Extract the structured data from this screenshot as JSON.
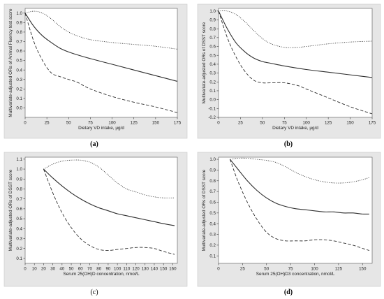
{
  "chart_data": [
    {
      "type": "line",
      "panel_label": "(a)",
      "label_bold": true,
      "xlabel": "Dietary VD intake, μg/d",
      "ylabel": "Multivariate-adjusted ORs of Animal Fluency test score",
      "xlim": [
        0,
        175
      ],
      "ylim": [
        -0.1,
        1.05
      ],
      "xticks": [
        0,
        25,
        50,
        75,
        100,
        125,
        150,
        175
      ],
      "yticks": [
        0.0,
        0.1,
        0.2,
        0.3,
        0.4,
        0.5,
        0.6,
        0.7,
        0.8,
        0.9,
        1.0
      ],
      "series": [
        {
          "style": "dotted",
          "x": [
            0,
            10,
            20,
            30,
            40,
            50,
            60,
            75,
            100,
            125,
            150,
            175
          ],
          "y": [
            1.0,
            1.02,
            1.0,
            0.94,
            0.86,
            0.8,
            0.76,
            0.72,
            0.69,
            0.67,
            0.65,
            0.62
          ]
        },
        {
          "style": "solid",
          "x": [
            0,
            10,
            20,
            30,
            40,
            50,
            60,
            75,
            100,
            125,
            150,
            175
          ],
          "y": [
            1.0,
            0.86,
            0.76,
            0.69,
            0.63,
            0.59,
            0.56,
            0.52,
            0.46,
            0.4,
            0.34,
            0.28
          ]
        },
        {
          "style": "dashed",
          "x": [
            0,
            10,
            20,
            30,
            40,
            50,
            60,
            75,
            100,
            125,
            150,
            175
          ],
          "y": [
            1.0,
            0.7,
            0.5,
            0.37,
            0.33,
            0.3,
            0.27,
            0.2,
            0.12,
            0.06,
            0.01,
            -0.05
          ]
        }
      ]
    },
    {
      "type": "line",
      "panel_label": "(b)",
      "label_bold": true,
      "xlabel": "Dietary VD intake, μg/d",
      "ylabel": "Multivariate-adjusted ORs of DSST score",
      "xlim": [
        0,
        175
      ],
      "ylim": [
        -0.2,
        1.03
      ],
      "xticks": [
        0,
        25,
        50,
        75,
        100,
        125,
        150,
        175
      ],
      "yticks": [
        -0.2,
        -0.1,
        0.0,
        0.1,
        0.2,
        0.3,
        0.4,
        0.5,
        0.6,
        0.7,
        0.8,
        0.9,
        1.0
      ],
      "series": [
        {
          "style": "dotted",
          "x": [
            0,
            10,
            20,
            30,
            40,
            50,
            60,
            75,
            90,
            100,
            125,
            150,
            175
          ],
          "y": [
            1.0,
            1.0,
            0.96,
            0.88,
            0.78,
            0.69,
            0.63,
            0.59,
            0.59,
            0.6,
            0.63,
            0.65,
            0.66
          ]
        },
        {
          "style": "solid",
          "x": [
            0,
            10,
            20,
            30,
            40,
            50,
            60,
            75,
            100,
            125,
            150,
            175
          ],
          "y": [
            1.0,
            0.8,
            0.64,
            0.54,
            0.47,
            0.43,
            0.41,
            0.38,
            0.34,
            0.31,
            0.28,
            0.25
          ]
        },
        {
          "style": "dashed",
          "x": [
            0,
            10,
            20,
            30,
            40,
            50,
            60,
            75,
            90,
            100,
            125,
            150,
            175
          ],
          "y": [
            1.0,
            0.7,
            0.48,
            0.32,
            0.22,
            0.19,
            0.19,
            0.19,
            0.16,
            0.12,
            0.02,
            -0.08,
            -0.16
          ]
        }
      ]
    },
    {
      "type": "line",
      "panel_label": "(c)",
      "label_bold": false,
      "xlabel": "Serum 25(OH)D concentration, nmol/L",
      "ylabel": "Multivariate-adjusted ORs of DSST score",
      "xlim": [
        0,
        165
      ],
      "ylim": [
        0.05,
        1.12
      ],
      "xticks": [
        0,
        10,
        20,
        30,
        40,
        50,
        60,
        70,
        80,
        90,
        100,
        110,
        120,
        130,
        140,
        150,
        160
      ],
      "yticks": [
        0.1,
        0.2,
        0.3,
        0.4,
        0.5,
        0.6,
        0.7,
        0.8,
        0.9,
        1.0,
        1.1
      ],
      "series": [
        {
          "style": "dotted",
          "x": [
            20,
            30,
            40,
            50,
            60,
            70,
            80,
            90,
            100,
            110,
            120,
            130,
            140,
            150,
            162
          ],
          "y": [
            1.0,
            1.05,
            1.08,
            1.09,
            1.09,
            1.07,
            1.02,
            0.94,
            0.86,
            0.8,
            0.77,
            0.74,
            0.72,
            0.71,
            0.71
          ]
        },
        {
          "style": "solid",
          "x": [
            20,
            30,
            40,
            50,
            60,
            70,
            80,
            90,
            100,
            110,
            120,
            130,
            140,
            150,
            162
          ],
          "y": [
            1.0,
            0.91,
            0.83,
            0.76,
            0.7,
            0.65,
            0.61,
            0.58,
            0.55,
            0.53,
            0.51,
            0.49,
            0.47,
            0.45,
            0.43
          ]
        },
        {
          "style": "dashed",
          "x": [
            20,
            30,
            40,
            50,
            60,
            70,
            80,
            90,
            100,
            110,
            120,
            130,
            140,
            150,
            162
          ],
          "y": [
            1.0,
            0.76,
            0.56,
            0.41,
            0.3,
            0.23,
            0.19,
            0.18,
            0.19,
            0.2,
            0.21,
            0.21,
            0.2,
            0.17,
            0.14
          ]
        }
      ]
    },
    {
      "type": "line",
      "panel_label": "(d)",
      "label_bold": true,
      "xlabel": "Serum 25(OH)D3 concentration, nmol/L",
      "ylabel": "Multivariate-adjusted ORs of DSST score",
      "xlim": [
        0,
        160
      ],
      "ylim": [
        0.03,
        1.02
      ],
      "xticks": [
        0,
        25,
        50,
        75,
        100,
        125,
        150
      ],
      "yticks": [
        0.1,
        0.2,
        0.3,
        0.4,
        0.5,
        0.6,
        0.7,
        0.8,
        0.9,
        1.0
      ],
      "series": [
        {
          "style": "dotted",
          "x": [
            12,
            20,
            30,
            40,
            50,
            60,
            70,
            80,
            90,
            100,
            110,
            120,
            130,
            140,
            150,
            157
          ],
          "y": [
            1.0,
            1.01,
            1.01,
            1.0,
            0.99,
            0.97,
            0.93,
            0.88,
            0.84,
            0.81,
            0.79,
            0.78,
            0.78,
            0.79,
            0.81,
            0.83
          ]
        },
        {
          "style": "solid",
          "x": [
            12,
            20,
            30,
            40,
            50,
            60,
            70,
            80,
            90,
            100,
            110,
            120,
            130,
            140,
            150,
            157
          ],
          "y": [
            1.0,
            0.91,
            0.8,
            0.71,
            0.64,
            0.59,
            0.56,
            0.54,
            0.53,
            0.52,
            0.51,
            0.51,
            0.5,
            0.5,
            0.49,
            0.49
          ]
        },
        {
          "style": "dashed",
          "x": [
            12,
            20,
            30,
            40,
            50,
            60,
            70,
            80,
            90,
            100,
            110,
            120,
            130,
            140,
            150,
            157
          ],
          "y": [
            1.0,
            0.8,
            0.6,
            0.44,
            0.32,
            0.26,
            0.24,
            0.24,
            0.24,
            0.25,
            0.25,
            0.24,
            0.22,
            0.2,
            0.17,
            0.15
          ]
        }
      ]
    }
  ]
}
